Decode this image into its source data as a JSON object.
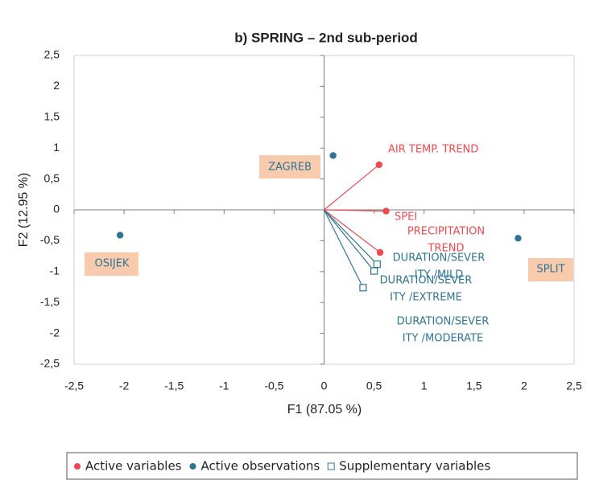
{
  "chart_data": {
    "type": "scatter",
    "title": "b) SPRING – 2nd sub-period",
    "xlabel": "F1 (87.05 %)",
    "ylabel": "F2 (12.95 %)",
    "xlim": [
      -2.5,
      2.5
    ],
    "ylim": [
      -2.5,
      2.5
    ],
    "xticks": [
      {
        "value": -2.5,
        "label": "-2,5"
      },
      -2,
      {
        "value": -1.5,
        "label": "-1,5"
      },
      -1,
      {
        "value": -0.5,
        "label": "-0,5"
      },
      0,
      {
        "value": 0.5,
        "label": "0,5"
      },
      1,
      {
        "value": 1.5,
        "label": "1,5"
      },
      2,
      {
        "value": 2.5,
        "label": "2,5"
      }
    ],
    "yticks": [
      {
        "value": -2.5,
        "label": "-2,5"
      },
      -2,
      {
        "value": -1.5,
        "label": "-1,5"
      },
      -1,
      {
        "value": -0.5,
        "label": "-0,5"
      },
      0,
      {
        "value": 0.5,
        "label": "0,5"
      },
      1,
      {
        "value": 1.5,
        "label": "1,5"
      },
      2,
      {
        "value": 2.5,
        "label": "2,5"
      }
    ],
    "legend": "bottom",
    "series": [
      {
        "name": "Active variables",
        "color": "#f0484e",
        "marker": "circle",
        "vectors": true,
        "x": [
          0.55,
          0.62,
          0.56
        ],
        "values": [
          0.73,
          -0.02,
          -0.69
        ],
        "labels": [
          [
            "AIR TEMP. TREND"
          ],
          [
            "SPEI"
          ],
          [
            "PRECIPITATION",
            "TREND"
          ]
        ]
      },
      {
        "name": "Active observations",
        "color": "#2e7595",
        "marker": "circle",
        "vectors": false,
        "label_box": "#f8cbad",
        "x": [
          0.09,
          -2.04,
          1.94
        ],
        "values": [
          0.88,
          -0.41,
          -0.46
        ],
        "labels": [
          [
            "ZAGREB"
          ],
          [
            "OSIJEK"
          ],
          [
            "SPLIT"
          ]
        ]
      },
      {
        "name": "Supplementary variables",
        "color": "#2e7595",
        "marker": "square",
        "vectors": true,
        "x": [
          0.53,
          0.5,
          0.39
        ],
        "values": [
          -0.88,
          -0.99,
          -1.26
        ],
        "labels": [
          [
            "DURATION/SEVER",
            "ITY /MILD"
          ],
          [
            "DURATION/SEVER",
            "ITY /EXTREME"
          ],
          [
            "DURATION/SEVER",
            "ITY /MODERATE"
          ]
        ]
      }
    ]
  }
}
